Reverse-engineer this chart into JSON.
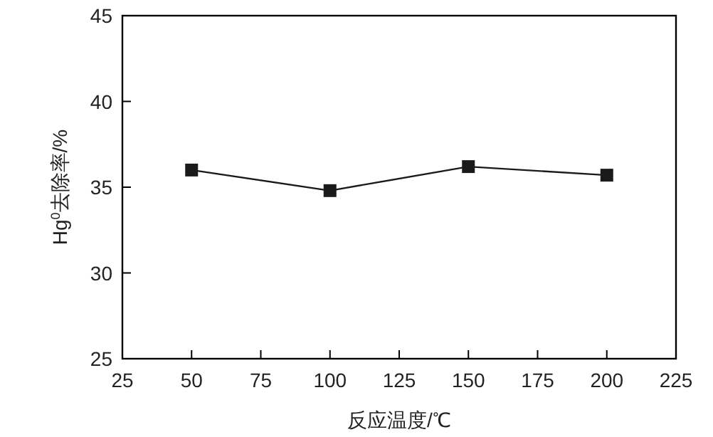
{
  "chart_data": {
    "type": "line",
    "xlabel": "反应温度/℃",
    "ylabel": "Hg$^{0}$去除率/%",
    "x": [
      50,
      100,
      150,
      200
    ],
    "series": [
      {
        "color": "#1a1a1a",
        "values": [
          36.0,
          34.8,
          36.2,
          35.7
        ]
      }
    ],
    "xlim": [
      25,
      225
    ],
    "xticks": [
      25,
      50,
      75,
      100,
      125,
      150,
      175,
      200,
      225
    ],
    "ylim": [
      25,
      45
    ],
    "yticks": [
      25,
      30,
      35,
      40,
      45
    ],
    "marker": "square",
    "line_style": "solid",
    "grid": false
  }
}
